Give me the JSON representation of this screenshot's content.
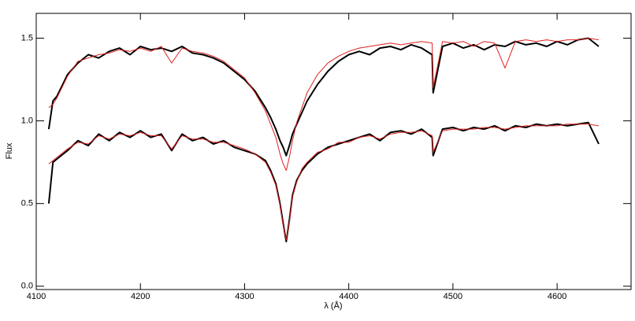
{
  "chart_data": {
    "type": "line",
    "x_label": "λ (Å)",
    "y_label": "Flux",
    "xlim": [
      4100,
      4671
    ],
    "ylim": [
      -0.02,
      1.65
    ],
    "xticks": [
      4100,
      4200,
      4300,
      4400,
      4500,
      4600
    ],
    "yticks": [
      {
        "value": 0,
        "label": "0.0"
      },
      0.5,
      {
        "value": 1,
        "label": "1.0"
      },
      1.5
    ],
    "x": [
      4112,
      4116,
      4120,
      4130,
      4140,
      4150,
      4160,
      4170,
      4180,
      4190,
      4200,
      4210,
      4220,
      4230,
      4240,
      4250,
      4260,
      4270,
      4280,
      4290,
      4300,
      4310,
      4320,
      4325,
      4330,
      4334,
      4337,
      4340,
      4343,
      4346,
      4350,
      4355,
      4360,
      4370,
      4380,
      4390,
      4400,
      4410,
      4420,
      4430,
      4440,
      4450,
      4460,
      4470,
      4480,
      4481,
      4490,
      4500,
      4510,
      4520,
      4530,
      4540,
      4550,
      4560,
      4570,
      4580,
      4590,
      4600,
      4610,
      4620,
      4630,
      4640
    ],
    "series": [
      {
        "color": "#000000",
        "values": [
          0.95,
          1.12,
          1.15,
          1.28,
          1.35,
          1.4,
          1.38,
          1.42,
          1.44,
          1.4,
          1.45,
          1.43,
          1.44,
          1.42,
          1.45,
          1.41,
          1.4,
          1.38,
          1.35,
          1.3,
          1.25,
          1.18,
          1.08,
          1.02,
          0.95,
          0.88,
          0.84,
          0.79,
          0.85,
          0.92,
          0.98,
          1.05,
          1.12,
          1.22,
          1.3,
          1.36,
          1.4,
          1.42,
          1.4,
          1.44,
          1.45,
          1.43,
          1.46,
          1.44,
          1.4,
          1.17,
          1.45,
          1.47,
          1.44,
          1.46,
          1.43,
          1.46,
          1.45,
          1.48,
          1.46,
          1.47,
          1.45,
          1.48,
          1.46,
          1.49,
          1.5,
          1.45
        ]
      },
      {
        "color": "#e02020",
        "values": [
          1.08,
          1.1,
          1.14,
          1.27,
          1.36,
          1.38,
          1.4,
          1.41,
          1.43,
          1.42,
          1.44,
          1.42,
          1.45,
          1.35,
          1.44,
          1.42,
          1.41,
          1.39,
          1.36,
          1.31,
          1.26,
          1.17,
          1.06,
          0.98,
          0.9,
          0.8,
          0.74,
          0.7,
          0.78,
          0.88,
          0.99,
          1.08,
          1.17,
          1.28,
          1.35,
          1.39,
          1.42,
          1.44,
          1.45,
          1.46,
          1.47,
          1.46,
          1.47,
          1.48,
          1.47,
          1.2,
          1.48,
          1.47,
          1.48,
          1.45,
          1.48,
          1.47,
          1.32,
          1.48,
          1.49,
          1.48,
          1.49,
          1.48,
          1.49,
          1.49,
          1.5,
          1.49
        ]
      },
      {
        "color": "#000000",
        "values": [
          0.5,
          0.75,
          0.77,
          0.82,
          0.88,
          0.85,
          0.92,
          0.88,
          0.93,
          0.9,
          0.94,
          0.9,
          0.92,
          0.82,
          0.92,
          0.88,
          0.9,
          0.86,
          0.88,
          0.84,
          0.82,
          0.8,
          0.76,
          0.7,
          0.62,
          0.5,
          0.38,
          0.27,
          0.4,
          0.55,
          0.64,
          0.7,
          0.74,
          0.8,
          0.84,
          0.86,
          0.88,
          0.9,
          0.92,
          0.88,
          0.93,
          0.94,
          0.92,
          0.95,
          0.9,
          0.79,
          0.95,
          0.96,
          0.94,
          0.96,
          0.95,
          0.97,
          0.94,
          0.97,
          0.96,
          0.98,
          0.97,
          0.98,
          0.97,
          0.98,
          0.99,
          0.86
        ]
      },
      {
        "color": "#e02020",
        "values": [
          0.74,
          0.76,
          0.78,
          0.83,
          0.87,
          0.86,
          0.91,
          0.89,
          0.92,
          0.91,
          0.93,
          0.91,
          0.91,
          0.83,
          0.91,
          0.89,
          0.89,
          0.87,
          0.87,
          0.85,
          0.83,
          0.8,
          0.75,
          0.69,
          0.61,
          0.49,
          0.37,
          0.28,
          0.39,
          0.54,
          0.63,
          0.71,
          0.75,
          0.81,
          0.83,
          0.87,
          0.87,
          0.9,
          0.91,
          0.89,
          0.92,
          0.93,
          0.93,
          0.94,
          0.91,
          0.81,
          0.94,
          0.95,
          0.95,
          0.95,
          0.96,
          0.96,
          0.95,
          0.96,
          0.97,
          0.97,
          0.97,
          0.97,
          0.98,
          0.98,
          0.98,
          0.97
        ]
      }
    ]
  }
}
